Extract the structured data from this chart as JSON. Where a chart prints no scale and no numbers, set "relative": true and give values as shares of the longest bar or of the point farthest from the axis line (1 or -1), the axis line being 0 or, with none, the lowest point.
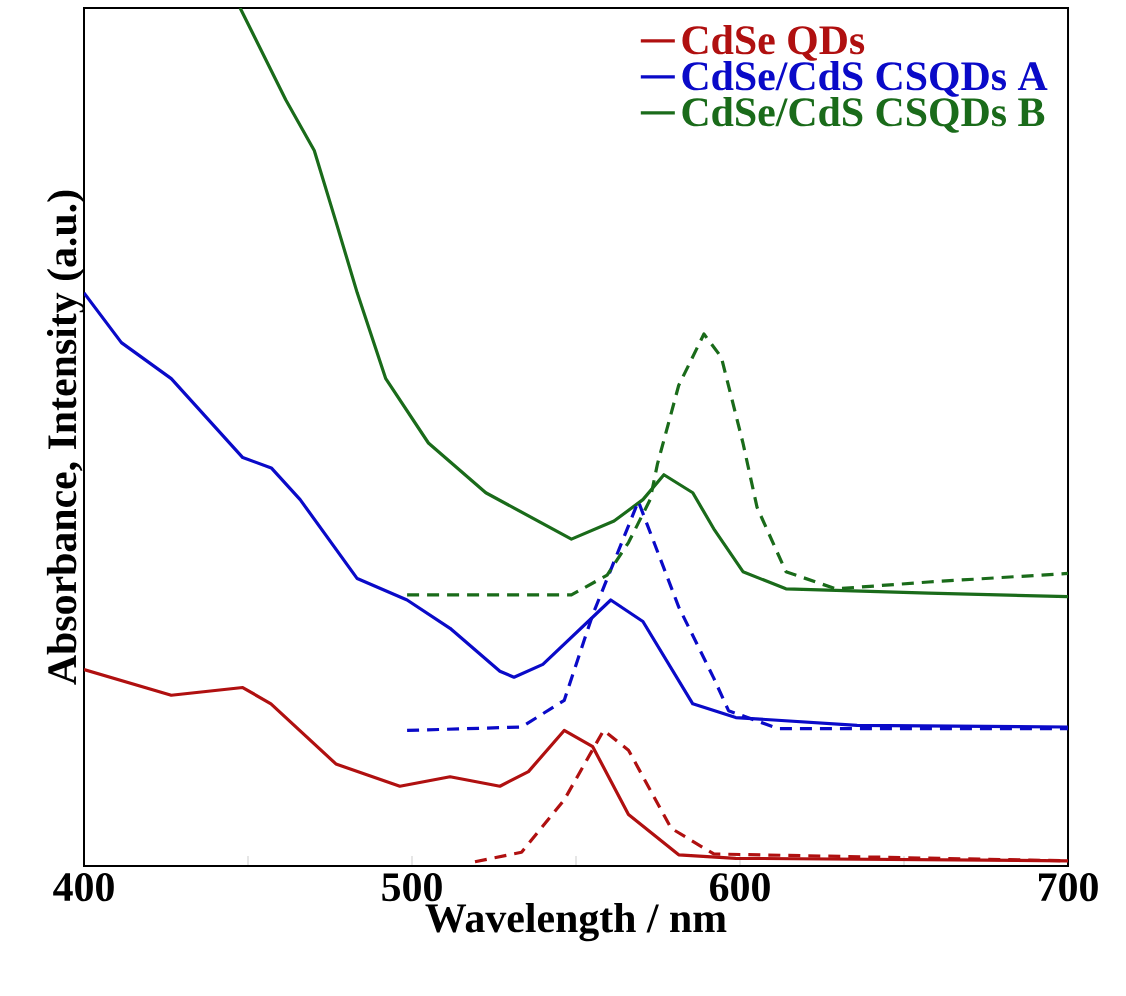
{
  "chart_data": {
    "type": "line",
    "relative": true,
    "xlabel": "Wavelength / nm",
    "ylabel": "Absorbance, Intensity (a.u.)",
    "xlim": [
      400,
      700
    ],
    "xticks": [
      400,
      {
        "value": 450,
        "label": null
      },
      500,
      {
        "value": 550,
        "label": null
      },
      600,
      {
        "value": 650,
        "label": null
      },
      700
    ],
    "legend": "top right",
    "grid": false,
    "marker": "none",
    "series": [
      {
        "name": "CdSe QDs",
        "color": "#b01010",
        "line_style": "solid",
        "x": [
          400,
          426.6,
          448.4,
          457,
          476.8,
          496.3,
          511.6,
          526.8,
          535.5,
          546.4,
          555.1,
          566,
          581.3,
          598.7,
          700
        ],
        "values": [
          0.229,
          0.199,
          0.208,
          0.189,
          0.119,
          0.093,
          0.104,
          0.093,
          0.11,
          0.158,
          0.139,
          0.06,
          0.013,
          0.009,
          0.006
        ]
      },
      {
        "name": "CdSe/CdS CSQDs A",
        "color": "#0a0ac8",
        "line_style": "solid",
        "x": [
          400,
          411.4,
          426.6,
          448.4,
          457.1,
          465.9,
          483.3,
          498.5,
          511.6,
          526.8,
          531.1,
          539.9,
          560.6,
          570.4,
          585.6,
          598.7,
          635.7,
          700
        ],
        "values": [
          0.668,
          0.61,
          0.568,
          0.476,
          0.464,
          0.427,
          0.335,
          0.31,
          0.277,
          0.227,
          0.22,
          0.235,
          0.31,
          0.285,
          0.189,
          0.173,
          0.164,
          0.162
        ]
      },
      {
        "name": "CdSe/CdS CSQDs B",
        "color": "#1a6b1a",
        "line_style": "solid",
        "x": [
          447.6,
          461.5,
          470.2,
          476.8,
          483.3,
          492,
          505,
          522.5,
          548.6,
          561.6,
          570.4,
          576.8,
          585.6,
          592,
          600.9,
          614,
          657.5,
          700
        ],
        "values": [
          1,
          0.893,
          0.834,
          0.751,
          0.668,
          0.568,
          0.493,
          0.435,
          0.381,
          0.402,
          0.427,
          0.456,
          0.435,
          0.393,
          0.343,
          0.323,
          0.318,
          0.314
        ]
      },
      {
        "color": "#b01010",
        "line_style": "dashed",
        "x": [
          519.2,
          533.4,
          546.4,
          558.4,
          566,
          579,
          592,
          700
        ],
        "values": [
          0.005,
          0.016,
          0.077,
          0.158,
          0.135,
          0.044,
          0.014,
          0.006
        ]
      },
      {
        "color": "#0a0ac8",
        "line_style": "dashed",
        "x": [
          498.5,
          533.4,
          546.4,
          555.1,
          569,
          581.3,
          592,
          596.5,
          611.8,
          700
        ],
        "values": [
          0.158,
          0.162,
          0.193,
          0.293,
          0.425,
          0.302,
          0.219,
          0.181,
          0.16,
          0.16
        ]
      },
      {
        "color": "#1a6b1a",
        "line_style": "dashed",
        "x": [
          498.5,
          548.6,
          559.5,
          566,
          572.6,
          574.8,
          581.3,
          589,
          594.3,
          600.9,
          605.2,
          614,
          629.2,
          657.5,
          700
        ],
        "values": [
          0.316,
          0.316,
          0.339,
          0.377,
          0.427,
          0.468,
          0.56,
          0.62,
          0.593,
          0.493,
          0.418,
          0.343,
          0.323,
          0.331,
          0.341
        ]
      }
    ]
  }
}
